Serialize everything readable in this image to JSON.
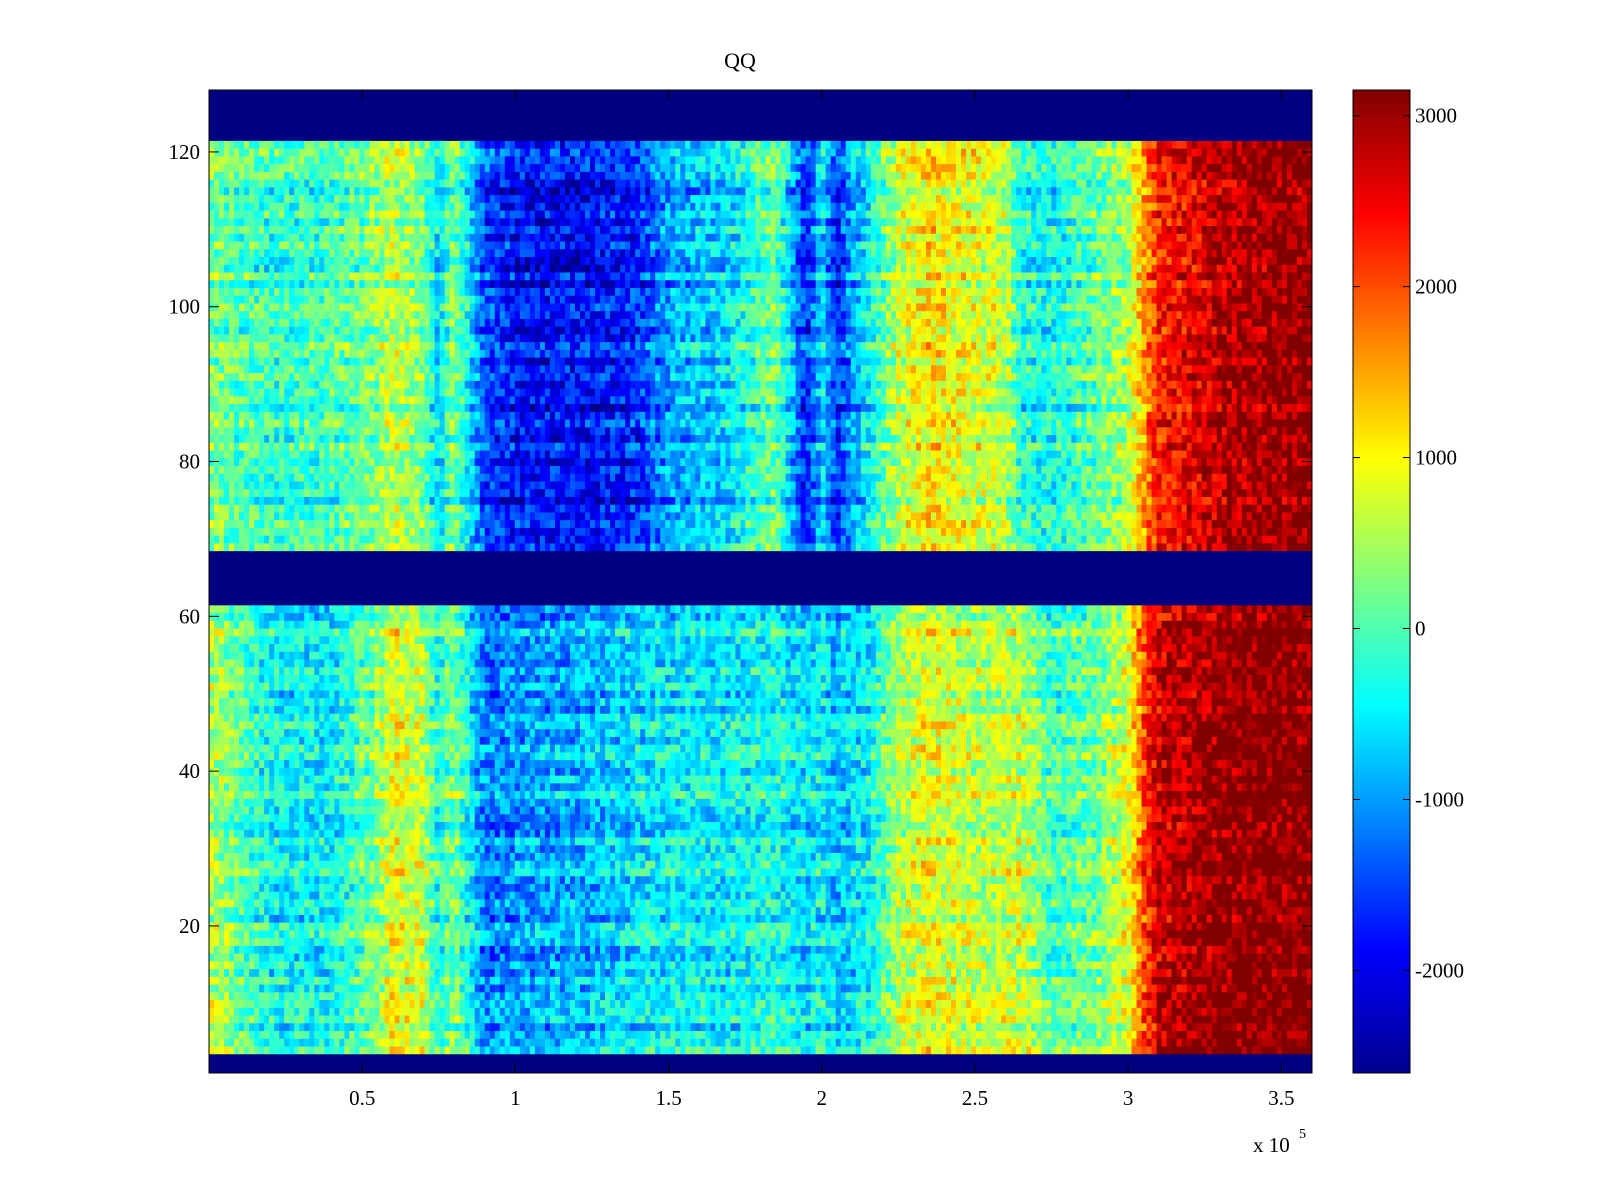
{
  "chart_data": {
    "type": "heatmap",
    "title": "QQ",
    "xlabel": "",
    "ylabel": "",
    "x_range": [
      0,
      360000
    ],
    "y_range": [
      1,
      128
    ],
    "x_ticks": [
      50000,
      100000,
      150000,
      200000,
      250000,
      300000,
      350000
    ],
    "x_tick_labels": [
      "0.5",
      "1",
      "1.5",
      "2",
      "2.5",
      "3",
      "3.5"
    ],
    "x_multiplier": {
      "base": "x 10",
      "exponent": "5"
    },
    "y_ticks": [
      20,
      40,
      60,
      80,
      100,
      120
    ],
    "y_tick_labels": [
      "20",
      "40",
      "60",
      "80",
      "100",
      "120"
    ],
    "colorbar": {
      "colormap": "jet",
      "range": [
        -2600,
        3150
      ],
      "ticks": [
        -2000,
        -1000,
        0,
        1000,
        2000,
        3000
      ],
      "tick_labels": [
        "-2000",
        "-1000",
        "0",
        "1000",
        "2000",
        "3000"
      ]
    },
    "masked_row_bands": [
      [
        1,
        3
      ],
      [
        62,
        68
      ],
      [
        122,
        128
      ]
    ],
    "masked_value": -2600,
    "column_profile": {
      "x": [
        0,
        20000,
        40000,
        55000,
        60000,
        70000,
        75000,
        80000,
        90000,
        100000,
        120000,
        140000,
        150000,
        170000,
        185000,
        195000,
        200000,
        205000,
        210000,
        215000,
        225000,
        235000,
        250000,
        260000,
        265000,
        275000,
        290000,
        300000,
        305000,
        310000,
        320000,
        330000,
        345000,
        360000
      ],
      "upper_block": [
        200,
        -200,
        -100,
        300,
        600,
        200,
        -700,
        300,
        -1500,
        -1800,
        -1900,
        -1700,
        -1000,
        -600,
        200,
        -1800,
        -600,
        -1700,
        -1000,
        -500,
        600,
        1100,
        800,
        600,
        -300,
        -400,
        100,
        500,
        1500,
        2300,
        2500,
        2800,
        3000,
        3100
      ],
      "lower_block": [
        600,
        -400,
        -500,
        300,
        900,
        600,
        -300,
        300,
        -1200,
        -1000,
        -900,
        -600,
        -500,
        -500,
        -300,
        -700,
        -400,
        -800,
        -600,
        -500,
        500,
        900,
        600,
        700,
        700,
        -100,
        200,
        800,
        2000,
        2700,
        2900,
        3050,
        3150,
        3150
      ]
    }
  }
}
